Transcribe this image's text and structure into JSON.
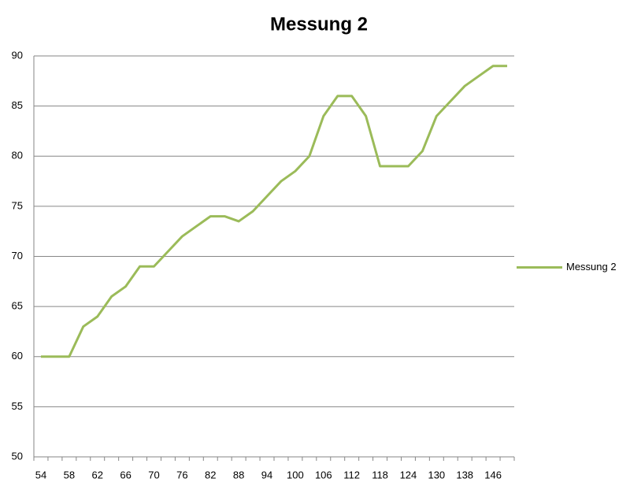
{
  "chart_data": {
    "type": "line",
    "title": "Messung 2",
    "categories": [
      54,
      null,
      58,
      null,
      62,
      null,
      66,
      null,
      70,
      null,
      76,
      null,
      82,
      null,
      88,
      null,
      94,
      null,
      100,
      null,
      106,
      null,
      112,
      null,
      118,
      null,
      124,
      null,
      130,
      null,
      138,
      null,
      146,
      null
    ],
    "series": [
      {
        "name": "Messung 2",
        "color": "#9bbb59",
        "values": [
          60,
          60,
          60,
          63,
          64,
          66,
          67,
          69,
          69,
          70.5,
          72,
          73,
          74,
          74,
          73.5,
          74.5,
          76,
          77.5,
          78.5,
          80,
          84,
          86,
          86,
          84,
          79,
          79,
          79,
          80.5,
          84,
          85.5,
          87,
          88,
          89,
          89
        ]
      }
    ],
    "ylim": [
      50,
      90
    ],
    "yticks": [
      50,
      55,
      60,
      65,
      70,
      75,
      80,
      85,
      90
    ],
    "grid": true,
    "legend": "right"
  }
}
